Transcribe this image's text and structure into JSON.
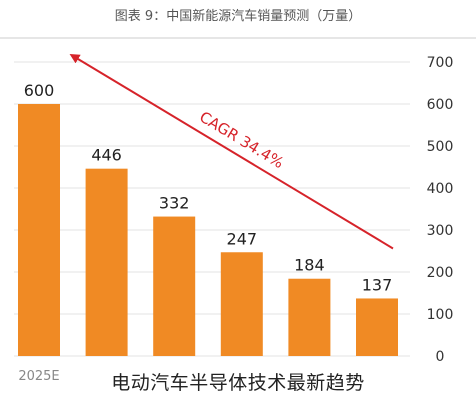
{
  "header": {
    "figure_title": "图表 9：中国新能源汽车销量预测（万量）"
  },
  "caption": "电动汽车半导体技术最新趋势",
  "colors": {
    "bar": "#f08a24",
    "arrow": "#d6232a",
    "grid": "#e3e3e3",
    "axis_text": "#333333",
    "title_text": "#555555"
  },
  "chart_data": {
    "type": "bar",
    "title": "图表 9：中国新能源汽车销量预测（万量）",
    "categories": [
      "2025E",
      "",
      "",
      "",
      "",
      ""
    ],
    "values": [
      600,
      446,
      332,
      247,
      184,
      137
    ],
    "data_labels": [
      "600",
      "446",
      "332",
      "247",
      "184",
      "137"
    ],
    "y_ticks": [
      "0",
      "100",
      "200",
      "300",
      "400",
      "500",
      "600",
      "700"
    ],
    "ylim": [
      0,
      700
    ],
    "grid": true,
    "y_axis_side": "right",
    "annotation": {
      "text": "CAGR 34.4%",
      "from_index": 5,
      "to_index": 0
    }
  }
}
